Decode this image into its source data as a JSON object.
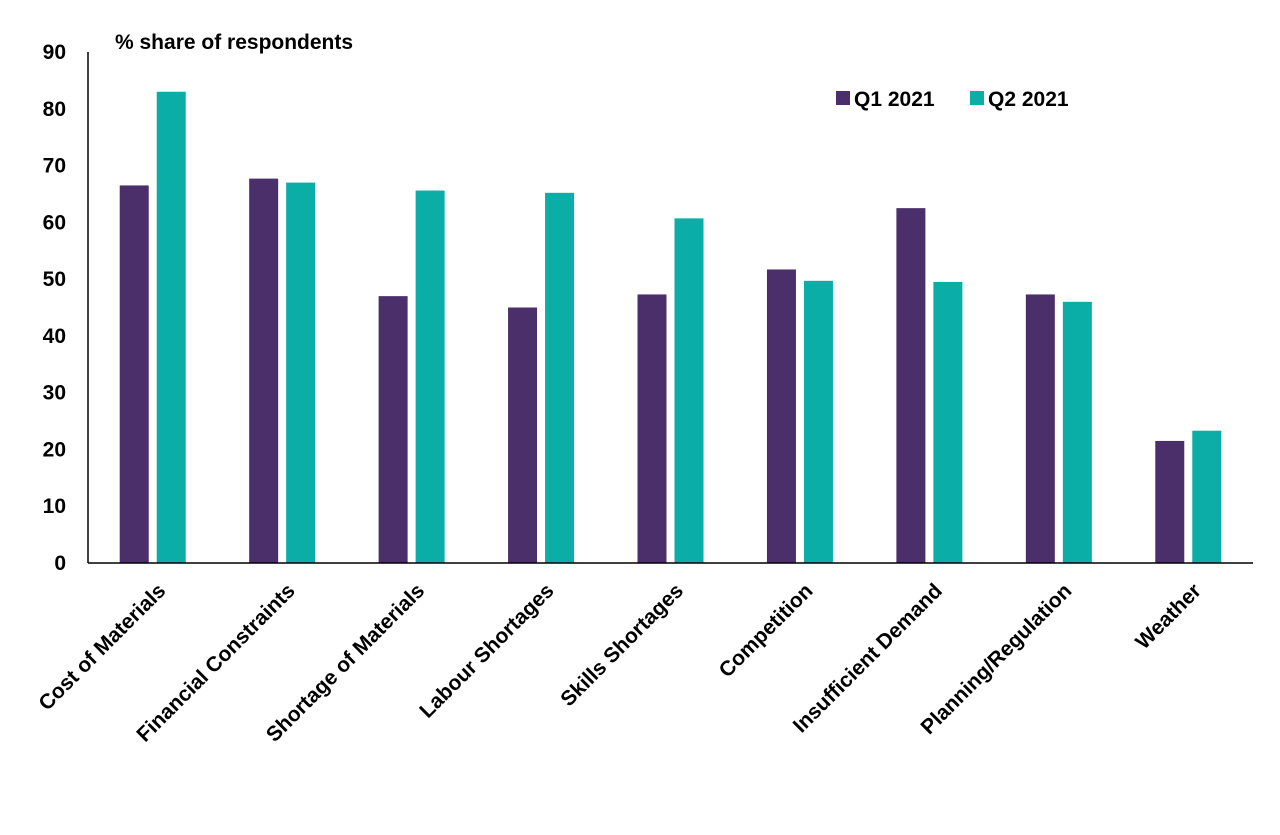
{
  "chart_data": {
    "type": "bar",
    "title": "% share of respondents",
    "xlabel": "",
    "ylabel": "",
    "ylim": [
      0,
      90
    ],
    "yticks": [
      0,
      10,
      20,
      30,
      40,
      50,
      60,
      70,
      80,
      90
    ],
    "grid": false,
    "legend_position": "top-right",
    "categories": [
      "Cost of Materials",
      "Financial Constraints",
      "Shortage of Materials",
      "Labour Shortages",
      "Skills Shortages",
      "Competition",
      "Insufficient Demand",
      "Planning/Regulation",
      "Weather"
    ],
    "series": [
      {
        "name": "Q1 2021",
        "color": "#4b2f6b",
        "values": [
          66.5,
          67.7,
          47,
          45,
          47.3,
          51.7,
          62.5,
          47.3,
          21.5
        ]
      },
      {
        "name": "Q2 2021",
        "color": "#0aaea7",
        "values": [
          83,
          67,
          65.6,
          65.2,
          60.7,
          49.7,
          49.5,
          46,
          23.3
        ]
      }
    ]
  }
}
